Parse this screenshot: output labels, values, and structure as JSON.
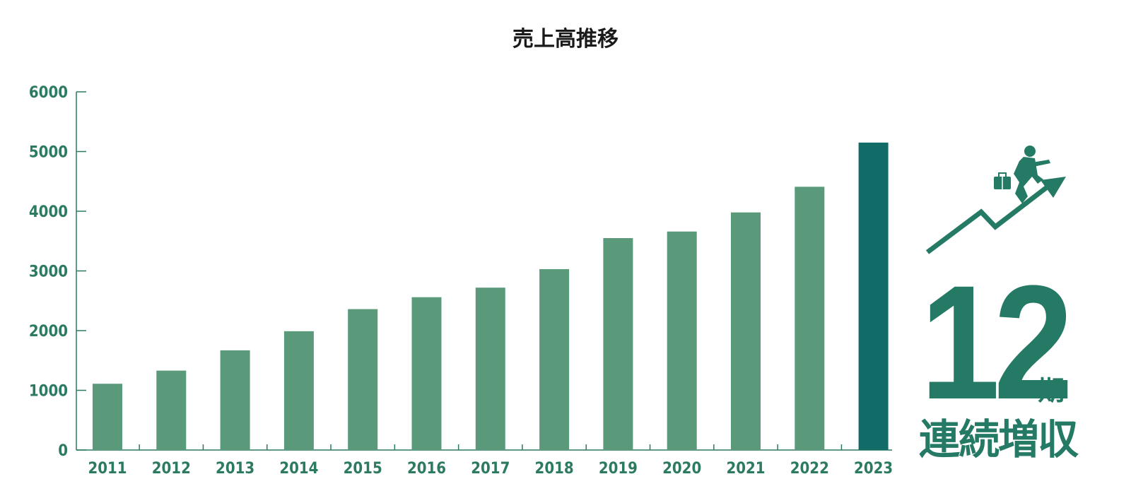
{
  "chart_data": {
    "type": "bar",
    "title": "売上高推移",
    "categories": [
      "2011",
      "2012",
      "2013",
      "2014",
      "2015",
      "2016",
      "2017",
      "2018",
      "2019",
      "2020",
      "2021",
      "2022",
      "2023"
    ],
    "values": [
      1110,
      1330,
      1670,
      1990,
      2360,
      2560,
      2720,
      3030,
      3550,
      3660,
      3980,
      4410,
      5150
    ],
    "ylim": [
      0,
      6000
    ],
    "yticks": [
      0,
      1000,
      2000,
      3000,
      4000,
      5000,
      6000
    ],
    "xlabel": "",
    "ylabel": "",
    "grid": false,
    "colors": {
      "bar": "#5a9a7a",
      "highlight": "#116b66",
      "axis": "#2c7a62",
      "badge": "#247a64"
    },
    "highlight_category": "2023"
  },
  "badge": {
    "number": "12",
    "unit": "期",
    "caption": "連続増収",
    "icon": "businessman-running-up-arrow-icon"
  }
}
